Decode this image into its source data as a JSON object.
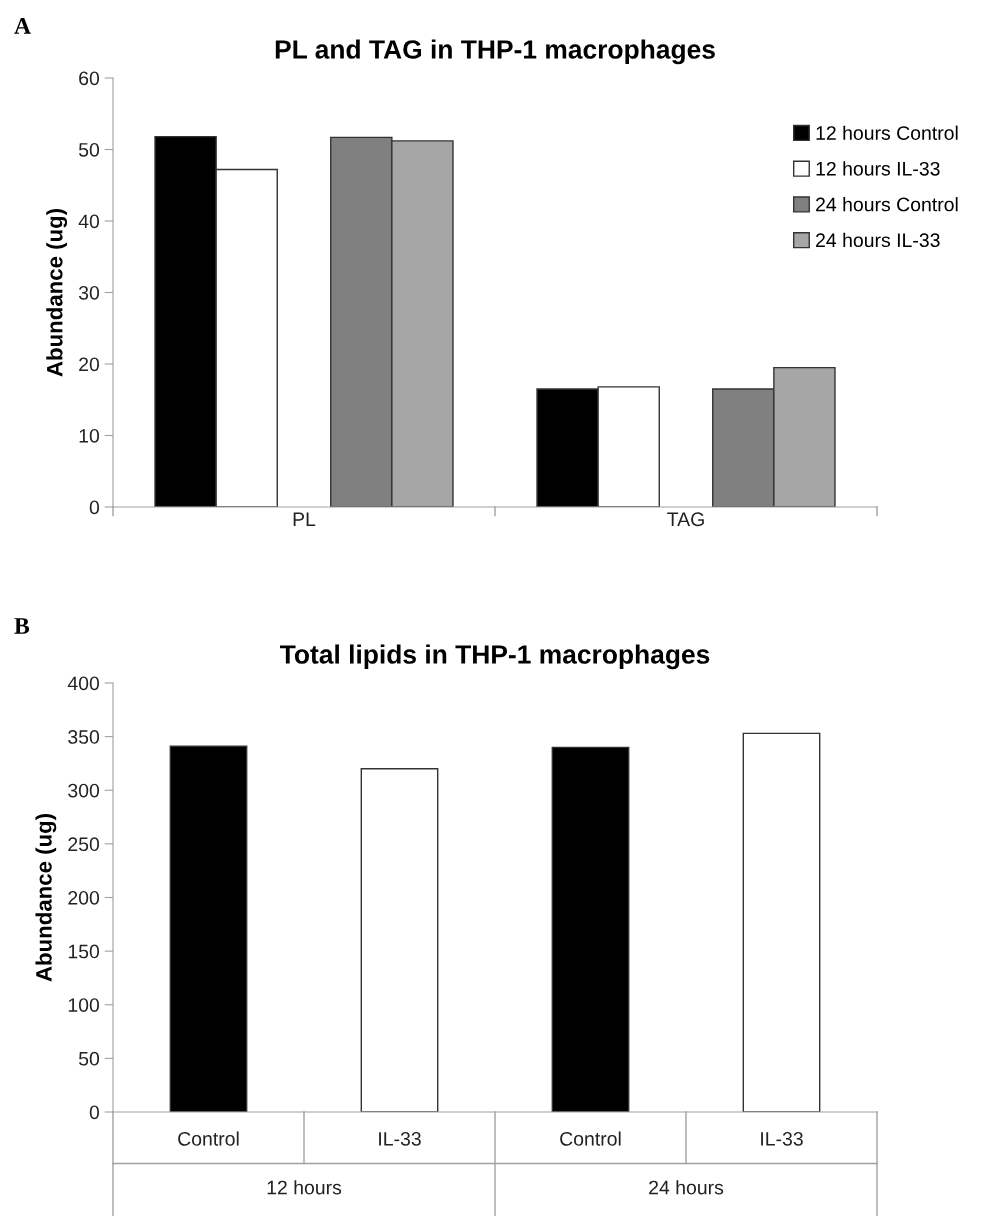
{
  "chart_data": [
    {
      "type": "bar",
      "title": "PL and TAG in THP-1 macrophages",
      "ylabel": "Abundance (ug)",
      "categories": [
        "PL",
        "TAG"
      ],
      "series": [
        {
          "name": "12 hours Control",
          "color": "#000000",
          "values": [
            51.8,
            16.5
          ]
        },
        {
          "name": "12 hours IL-33",
          "color": "#ffffff",
          "values": [
            47.2,
            16.8
          ]
        },
        {
          "name": "24 hours Control",
          "color": "#808080",
          "values": [
            51.7,
            16.5
          ]
        },
        {
          "name": "24 hours IL-33",
          "color": "#a6a6a6",
          "values": [
            51.2,
            19.5
          ]
        }
      ],
      "ylim": [
        0,
        60
      ],
      "yticks": [
        0,
        10,
        20,
        30,
        40,
        50,
        60
      ],
      "legend": "top right",
      "grid": false,
      "annotations": [
        "A"
      ]
    },
    {
      "type": "bar",
      "title": "Total lipids in THP-1 macrophages",
      "ylabel": "Abundance (ug)",
      "categories": [
        "Control",
        "IL-33",
        "Control",
        "IL-33"
      ],
      "values": [
        341,
        320,
        340,
        353
      ],
      "colors": [
        "#000000",
        "#ffffff",
        "#000000",
        "#ffffff"
      ],
      "ylim": [
        0,
        400
      ],
      "yticks": [
        0,
        50,
        100,
        150,
        200,
        250,
        300,
        350,
        400
      ],
      "grid": false,
      "annotations": [
        "B",
        "12 hours",
        "24 hours"
      ]
    }
  ]
}
